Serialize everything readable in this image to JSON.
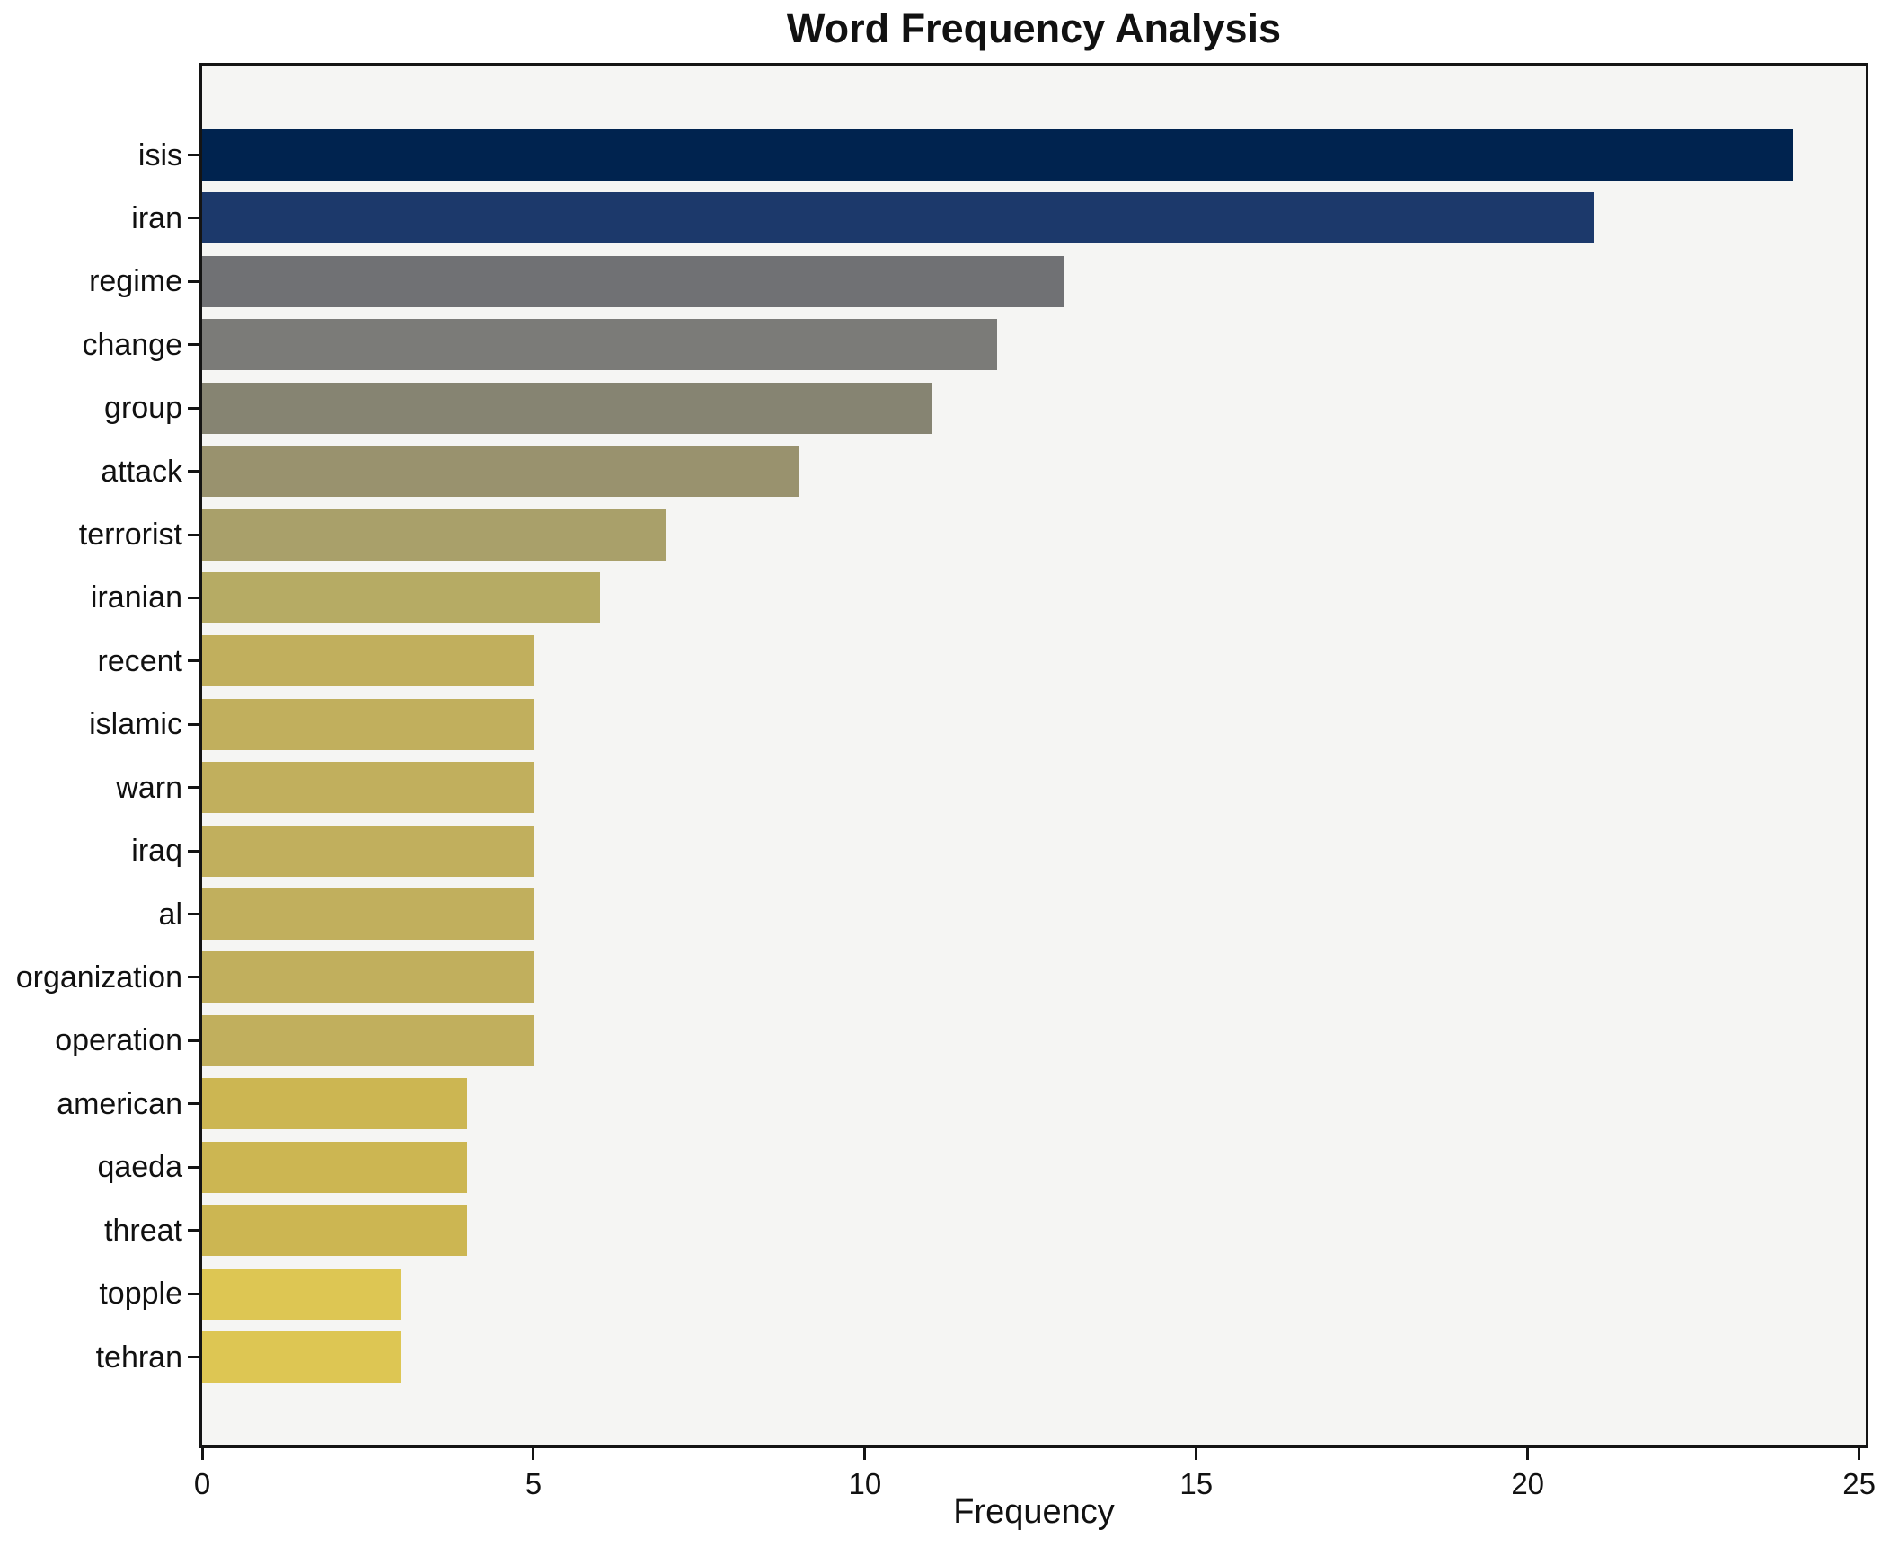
{
  "chart_data": {
    "type": "bar",
    "orientation": "horizontal",
    "title": "Word Frequency Analysis",
    "xlabel": "Frequency",
    "ylabel": "",
    "grid": false,
    "legend": null,
    "plot_background": "#f5f5f3",
    "frame_color": "#141414",
    "xlim": [
      0,
      25.1
    ],
    "xticks": [
      0,
      5,
      10,
      15,
      20,
      25
    ],
    "categories": [
      "isis",
      "iran",
      "regime",
      "change",
      "group",
      "attack",
      "terrorist",
      "iranian",
      "recent",
      "islamic",
      "warn",
      "iraq",
      "al",
      "organization",
      "operation",
      "american",
      "qaeda",
      "threat",
      "topple",
      "tehran"
    ],
    "values": [
      24,
      21,
      13,
      12,
      11,
      9,
      7,
      6,
      5,
      5,
      5,
      5,
      5,
      5,
      5,
      4,
      4,
      4,
      3,
      3
    ],
    "bar_colors": [
      "#00234f",
      "#1c396b",
      "#707174",
      "#7b7b78",
      "#868472",
      "#99926e",
      "#a9a06a",
      "#b6ab64",
      "#c1af5d",
      "#c1af5d",
      "#c1af5d",
      "#c1af5d",
      "#c1af5d",
      "#c1af5d",
      "#c1af5d",
      "#ccb652",
      "#ccb652",
      "#ccb652",
      "#ddc653",
      "#ddc653"
    ]
  }
}
